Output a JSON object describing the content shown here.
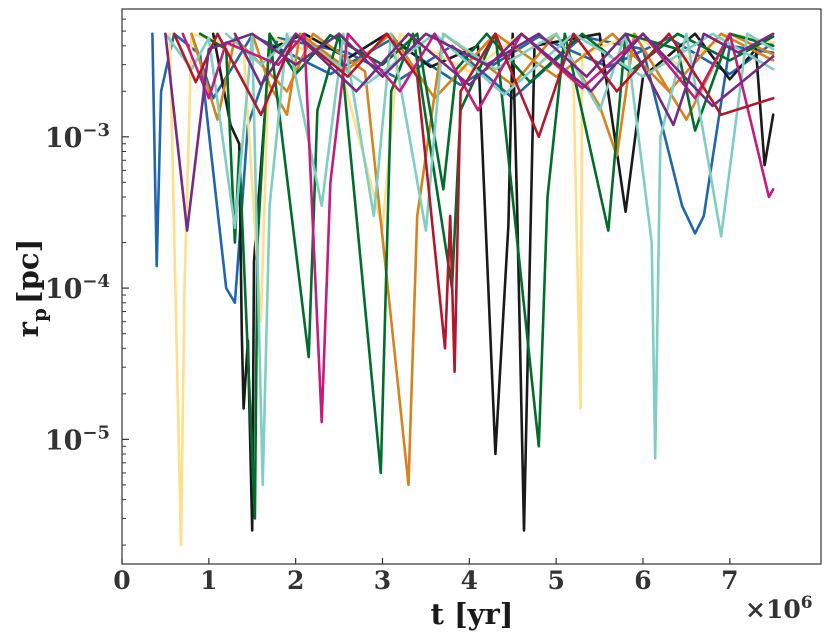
{
  "chart_data": {
    "type": "line",
    "title": "",
    "xlabel": "t [yr]",
    "ylabel": "r_p [pc]",
    "ylabel_parts": {
      "base": "r",
      "subscript": "p",
      "unit": "[pc]"
    },
    "x_unit": "yr",
    "x_multiplier": "×10",
    "x_multiplier_exponent": "6",
    "x_scale": "linear",
    "y_scale": "log",
    "xlim": [
      0,
      8050000.0
    ],
    "ylim": [
      1.5e-06,
      0.007
    ],
    "x_ticks": [
      0,
      1000000.0,
      2000000.0,
      3000000.0,
      4000000.0,
      5000000.0,
      6000000.0,
      7000000.0
    ],
    "x_tick_labels": [
      "0",
      "1",
      "2",
      "3",
      "4",
      "5",
      "6",
      "7"
    ],
    "y_ticks": [
      1e-05,
      0.0001,
      0.001
    ],
    "y_tick_labels": [
      {
        "base": "10",
        "exp": "−5"
      },
      {
        "base": "10",
        "exp": "−4"
      },
      {
        "base": "10",
        "exp": "−3"
      }
    ],
    "grid": false,
    "legend": "none",
    "series": [
      {
        "color": "#2166ac",
        "values": [
          [
            350000.0,
            0.0048
          ],
          [
            400000.0,
            0.00014
          ],
          [
            450000.0,
            0.002
          ],
          [
            600000.0,
            0.0048
          ],
          [
            900000.0,
            0.0035
          ],
          [
            1200000.0,
            0.0001
          ],
          [
            1300000.0,
            8e-05
          ],
          [
            1450000.0,
            0.0012
          ],
          [
            1800000.0,
            0.0045
          ],
          [
            2600000.0,
            0.0036
          ],
          [
            3200000.0,
            0.0024
          ],
          [
            3800000.0,
            0.004
          ],
          [
            4500000.0,
            0.0018
          ],
          [
            5300000.0,
            0.0046
          ],
          [
            6000000.0,
            0.0038
          ],
          [
            6450000.0,
            0.00035
          ],
          [
            6600000.0,
            0.00023
          ],
          [
            6700000.0,
            0.0003
          ],
          [
            7000000.0,
            0.004
          ],
          [
            7500000.0,
            0.0036
          ]
        ]
      },
      {
        "color": "#2166ac",
        "values": [
          [
            800000.0,
            0.0048
          ],
          [
            1050000.0,
            0.0018
          ],
          [
            1500000.0,
            0.0047
          ],
          [
            2400000.0,
            0.0026
          ],
          [
            3100000.0,
            0.0044
          ],
          [
            3900000.0,
            0.0022
          ],
          [
            4800000.0,
            0.0046
          ],
          [
            5600000.0,
            0.0029
          ],
          [
            6300000.0,
            0.0045
          ],
          [
            7000000.0,
            0.0026
          ],
          [
            7500000.0,
            0.0042
          ]
        ]
      },
      {
        "color": "#1a1a1a",
        "values": [
          [
            1050000.0,
            0.0048
          ],
          [
            1250000.0,
            0.0012
          ],
          [
            1350000.0,
            0.0009
          ],
          [
            1380000.0,
            5e-05
          ],
          [
            1400000.0,
            1.6e-05
          ],
          [
            1450000.0,
            4.5e-05
          ],
          [
            1500000.0,
            2.5e-06
          ],
          [
            1520000.0,
            0.00015
          ],
          [
            1700000.0,
            0.0038
          ],
          [
            2100000.0,
            0.0048
          ],
          [
            2600000.0,
            0.0033
          ],
          [
            3050000.0,
            0.0048
          ],
          [
            3550000.0,
            0.0029
          ],
          [
            4100000.0,
            0.004
          ],
          [
            4300000.0,
            8e-06
          ],
          [
            4450000.0,
            0.00026
          ],
          [
            4500000.0,
            0.0048
          ],
          [
            4550000.0,
            0.00035
          ],
          [
            4630000.0,
            2.5e-06
          ],
          [
            4750000.0,
            0.004
          ],
          [
            5500000.0,
            0.0048
          ],
          [
            5800000.0,
            0.00032
          ],
          [
            6000000.0,
            0.0025
          ],
          [
            6600000.0,
            0.0048
          ],
          [
            7000000.0,
            0.0024
          ],
          [
            7300000.0,
            0.0038
          ],
          [
            7400000.0,
            0.00065
          ],
          [
            7500000.0,
            0.0014
          ]
        ]
      },
      {
        "color": "#fee08b",
        "values": [
          [
            550000.0,
            0.0048
          ],
          [
            680000.0,
            2e-06
          ],
          [
            720000.0,
            0.0001
          ],
          [
            800000.0,
            0.0048
          ],
          [
            1400000.0,
            0.0038
          ],
          [
            1600000.0,
            6e-05
          ],
          [
            1700000.0,
            0.0046
          ],
          [
            2500000.0,
            0.0031
          ],
          [
            3000000.0,
            0.00025
          ],
          [
            3200000.0,
            0.0048
          ],
          [
            4000000.0,
            0.0027
          ],
          [
            4600000.0,
            0.0048
          ],
          [
            5200000.0,
            0.0023
          ],
          [
            5280000.0,
            1.6e-05
          ],
          [
            5300000.0,
            0.0035
          ],
          [
            5900000.0,
            0.0048
          ],
          [
            6400000.0,
            0.003
          ],
          [
            7000000.0,
            0.0048
          ],
          [
            7500000.0,
            0.0042
          ]
        ]
      },
      {
        "color": "#d6831d",
        "values": [
          [
            800000.0,
            0.0048
          ],
          [
            1100000.0,
            0.0013
          ],
          [
            1300000.0,
            0.0045
          ],
          [
            1900000.0,
            0.002
          ],
          [
            2200000.0,
            0.0048
          ],
          [
            2800000.0,
            0.0027
          ],
          [
            3300000.0,
            5e-06
          ],
          [
            3400000.0,
            0.0003
          ],
          [
            3700000.0,
            0.0048
          ],
          [
            4500000.0,
            0.0022
          ],
          [
            5000000.0,
            0.0048
          ],
          [
            5500000.0,
            0.0016
          ],
          [
            5700000.0,
            0.00075
          ],
          [
            5900000.0,
            0.0048
          ],
          [
            6500000.0,
            0.0013
          ],
          [
            7000000.0,
            0.0048
          ],
          [
            7500000.0,
            0.0035
          ]
        ]
      },
      {
        "color": "#d6831d",
        "values": [
          [
            1500000.0,
            0.0048
          ],
          [
            1700000.0,
            0.0022
          ],
          [
            1900000.0,
            0.0014
          ],
          [
            2050000.0,
            0.0048
          ],
          [
            2600000.0,
            0.0028
          ],
          [
            3100000.0,
            0.0048
          ],
          [
            3600000.0,
            0.0018
          ],
          [
            4300000.0,
            0.0048
          ],
          [
            5000000.0,
            0.0025
          ],
          [
            5650000.0,
            0.0048
          ],
          [
            6300000.0,
            0.002
          ],
          [
            6900000.0,
            0.0048
          ],
          [
            7500000.0,
            0.0032
          ]
        ]
      },
      {
        "color": "#006d2c",
        "values": [
          [
            900000.0,
            0.0048
          ],
          [
            1200000.0,
            0.0038
          ],
          [
            1300000.0,
            0.0002
          ],
          [
            1350000.0,
            0.0008
          ],
          [
            1530000.0,
            3e-06
          ],
          [
            1560000.0,
            0.0002
          ],
          [
            1700000.0,
            0.0048
          ],
          [
            2150000.0,
            3.5e-05
          ],
          [
            2250000.0,
            0.0015
          ],
          [
            2500000.0,
            0.0048
          ],
          [
            2980000.0,
            6e-06
          ],
          [
            3100000.0,
            0.002
          ],
          [
            3350000.0,
            0.0048
          ],
          [
            3800000.0,
            0.0001
          ],
          [
            3900000.0,
            0.0015
          ],
          [
            4300000.0,
            0.0048
          ],
          [
            4800000.0,
            9e-06
          ],
          [
            4900000.0,
            0.0004
          ],
          [
            5100000.0,
            0.0048
          ],
          [
            5600000.0,
            0.00024
          ],
          [
            5800000.0,
            0.0048
          ],
          [
            6400000.0,
            0.0038
          ],
          [
            6600000.0,
            0.0011
          ],
          [
            7000000.0,
            0.0048
          ],
          [
            7500000.0,
            0.004
          ]
        ]
      },
      {
        "color": "#006d2c",
        "values": [
          [
            1700000.0,
            0.0048
          ],
          [
            2000000.0,
            0.0026
          ],
          [
            2400000.0,
            0.0047
          ],
          [
            3000000.0,
            0.003
          ],
          [
            3400000.0,
            0.0048
          ],
          [
            3700000.0,
            0.00045
          ],
          [
            3850000.0,
            0.0028
          ],
          [
            4200000.0,
            0.0048
          ],
          [
            4700000.0,
            0.0023
          ],
          [
            5300000.0,
            0.0048
          ],
          [
            5850000.0,
            0.0027
          ],
          [
            6400000.0,
            0.0048
          ],
          [
            7000000.0,
            0.0032
          ],
          [
            7500000.0,
            0.0046
          ]
        ]
      },
      {
        "color": "#80cdc1",
        "values": [
          [
            500000.0,
            0.0048
          ],
          [
            800000.0,
            0.0028
          ],
          [
            1000000.0,
            0.0045
          ],
          [
            1300000.0,
            0.00025
          ],
          [
            1500000.0,
            0.0047
          ],
          [
            1620000.0,
            5e-06
          ],
          [
            1700000.0,
            0.00035
          ],
          [
            1900000.0,
            0.0048
          ],
          [
            2300000.0,
            0.00035
          ],
          [
            2550000.0,
            0.0048
          ],
          [
            2900000.0,
            0.0003
          ],
          [
            3100000.0,
            0.0048
          ],
          [
            3500000.0,
            0.00024
          ],
          [
            3700000.0,
            0.0048
          ],
          [
            4300000.0,
            0.0028
          ],
          [
            5000000.0,
            0.0048
          ],
          [
            5500000.0,
            0.0015
          ],
          [
            5800000.0,
            0.0048
          ],
          [
            6100000.0,
            0.0002
          ],
          [
            6140000.0,
            7.5e-06
          ],
          [
            6200000.0,
            0.001
          ],
          [
            6500000.0,
            0.0048
          ],
          [
            6900000.0,
            0.00022
          ],
          [
            7200000.0,
            0.0048
          ],
          [
            7500000.0,
            0.0038
          ]
        ]
      },
      {
        "color": "#80cdc1",
        "values": [
          [
            1200000.0,
            0.0048
          ],
          [
            1600000.0,
            0.003
          ],
          [
            2000000.0,
            0.0048
          ],
          [
            2800000.0,
            0.0022
          ],
          [
            3600000.0,
            0.0048
          ],
          [
            4400000.0,
            0.0019
          ],
          [
            5200000.0,
            0.0048
          ],
          [
            6000000.0,
            0.0025
          ],
          [
            6800000.0,
            0.0048
          ],
          [
            7500000.0,
            0.0028
          ]
        ]
      },
      {
        "color": "#c51b7d",
        "values": [
          [
            700000.0,
            0.0048
          ],
          [
            1000000.0,
            0.0018
          ],
          [
            1200000.0,
            0.0042
          ],
          [
            1800000.0,
            0.003
          ],
          [
            2100000.0,
            0.0048
          ],
          [
            2300000.0,
            1.3e-05
          ],
          [
            2400000.0,
            0.0005
          ],
          [
            2600000.0,
            0.0048
          ],
          [
            3200000.0,
            0.002
          ],
          [
            3600000.0,
            0.0048
          ],
          [
            4100000.0,
            0.0015
          ],
          [
            4600000.0,
            0.0048
          ],
          [
            5300000.0,
            0.0021
          ],
          [
            6000000.0,
            0.0048
          ],
          [
            6600000.0,
            0.0018
          ],
          [
            7000000.0,
            0.0048
          ],
          [
            7450000.0,
            0.0004
          ],
          [
            7500000.0,
            0.00045
          ]
        ]
      },
      {
        "color": "#b2182b",
        "values": [
          [
            600000.0,
            0.0048
          ],
          [
            850000.0,
            0.0023
          ],
          [
            1100000.0,
            0.0048
          ],
          [
            1600000.0,
            0.0014
          ],
          [
            2000000.0,
            0.0048
          ],
          [
            2600000.0,
            0.0025
          ],
          [
            3050000.0,
            0.0048
          ],
          [
            3400000.0,
            0.0025
          ],
          [
            3720000.0,
            4e-05
          ],
          [
            3780000.0,
            0.0003
          ],
          [
            3830000.0,
            2.8e-05
          ],
          [
            3900000.0,
            0.002
          ],
          [
            4300000.0,
            0.0048
          ],
          [
            4800000.0,
            0.001
          ],
          [
            5200000.0,
            0.0048
          ],
          [
            5700000.0,
            0.002
          ],
          [
            6300000.0,
            0.0048
          ],
          [
            6900000.0,
            0.0014
          ],
          [
            7500000.0,
            0.0018
          ]
        ]
      },
      {
        "color": "#762a83",
        "values": [
          [
            500000.0,
            0.0048
          ],
          [
            750000.0,
            0.00024
          ],
          [
            1000000.0,
            0.0038
          ],
          [
            1500000.0,
            0.0048
          ],
          [
            2000000.0,
            0.003
          ],
          [
            2500000.0,
            0.0048
          ],
          [
            3000000.0,
            0.0025
          ],
          [
            3500000.0,
            0.0048
          ],
          [
            4200000.0,
            0.003
          ],
          [
            4800000.0,
            0.0048
          ],
          [
            5350000.0,
            0.0025
          ],
          [
            5800000.0,
            0.0048
          ],
          [
            6350000.0,
            0.0012
          ],
          [
            6700000.0,
            0.0048
          ],
          [
            7100000.0,
            0.0036
          ],
          [
            7500000.0,
            0.0048
          ]
        ]
      },
      {
        "color": "#762a83",
        "values": [
          [
            1300000.0,
            0.0048
          ],
          [
            1600000.0,
            0.0022
          ],
          [
            2000000.0,
            0.0048
          ],
          [
            2700000.0,
            0.002
          ],
          [
            3300000.0,
            0.0048
          ],
          [
            4000000.0,
            0.0022
          ],
          [
            4600000.0,
            0.0048
          ],
          [
            5400000.0,
            0.002
          ],
          [
            6000000.0,
            0.0048
          ],
          [
            6800000.0,
            0.0016
          ],
          [
            7500000.0,
            0.0034
          ]
        ]
      }
    ]
  }
}
